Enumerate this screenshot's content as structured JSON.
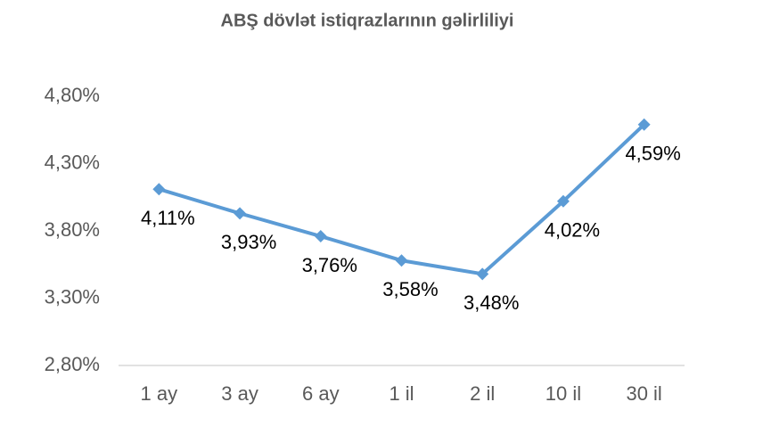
{
  "chart_data": {
    "type": "line",
    "title": "ABŞ dövlət istiqrazlarının gəlirliliyi",
    "categories": [
      "1 ay",
      "3 ay",
      "6 ay",
      "1 il",
      "2 il",
      "10 il",
      "30 il"
    ],
    "values": [
      4.11,
      3.93,
      3.76,
      3.58,
      3.48,
      4.02,
      4.59
    ],
    "value_labels": [
      "4,11%",
      "3,93%",
      "3,76%",
      "3,58%",
      "3,48%",
      "4,02%",
      "4,59%"
    ],
    "color": "#5b9bd5",
    "ylim": [
      2.8,
      4.8
    ],
    "yticks": [
      {
        "value": 2.8,
        "label": "2,80%"
      },
      {
        "value": 3.3,
        "label": "3,30%"
      },
      {
        "value": 3.8,
        "label": "3,80%"
      },
      {
        "value": 4.3,
        "label": "4,30%"
      },
      {
        "value": 4.8,
        "label": "4,80%"
      }
    ],
    "grid": false
  }
}
